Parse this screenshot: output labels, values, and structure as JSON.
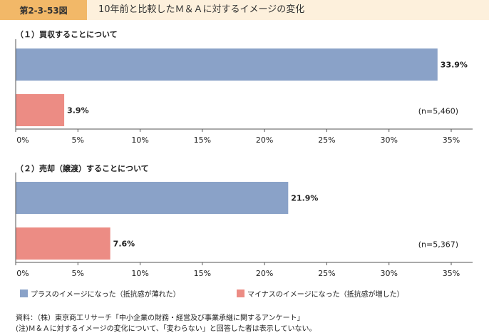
{
  "header": {
    "figure_label": "第2-3-53図",
    "title": "10年前と比較したＭ＆Ａに対するイメージの変化"
  },
  "colors": {
    "plus": "#8aa2c8",
    "minus": "#ec8c84",
    "header_accent": "#f2b868",
    "header_bg": "#fdf0dc"
  },
  "legend": {
    "plus": "プラスのイメージになった（抵抗感が薄れた）",
    "minus": "マイナスのイメージになった（抵抗感が増した）"
  },
  "footer": {
    "source": "資料：（株）東京商工リサーチ「中小企業の財務・経営及び事業承継に関するアンケート」",
    "note": "(注)Ｍ＆Ａに対するイメージの変化について、「変わらない」と回答した者は表示していない。"
  },
  "chart_data": [
    {
      "type": "bar",
      "orientation": "horizontal",
      "title": "（１）買収することについて",
      "series": [
        {
          "name": "プラスのイメージになった（抵抗感が薄れた）",
          "value": 33.9,
          "label": "33.9%"
        },
        {
          "name": "マイナスのイメージになった（抵抗感が増した）",
          "value": 3.9,
          "label": "3.9%"
        }
      ],
      "n_label": "(n=5,460)",
      "xlim": [
        0,
        35
      ],
      "ticks": [
        0,
        5,
        10,
        15,
        20,
        25,
        30,
        35
      ],
      "tick_labels": [
        "0%",
        "5%",
        "10%",
        "15%",
        "20%",
        "25%",
        "30%",
        "35%"
      ]
    },
    {
      "type": "bar",
      "orientation": "horizontal",
      "title": "（２）売却（譲渡）することについて",
      "series": [
        {
          "name": "プラスのイメージになった（抵抗感が薄れた）",
          "value": 21.9,
          "label": "21.9%"
        },
        {
          "name": "マイナスのイメージになった（抵抗感が増した）",
          "value": 7.6,
          "label": "7.6%"
        }
      ],
      "n_label": "(n=5,367)",
      "xlim": [
        0,
        35
      ],
      "ticks": [
        0,
        5,
        10,
        15,
        20,
        25,
        30,
        35
      ],
      "tick_labels": [
        "0%",
        "5%",
        "10%",
        "15%",
        "20%",
        "25%",
        "30%",
        "35%"
      ]
    }
  ]
}
